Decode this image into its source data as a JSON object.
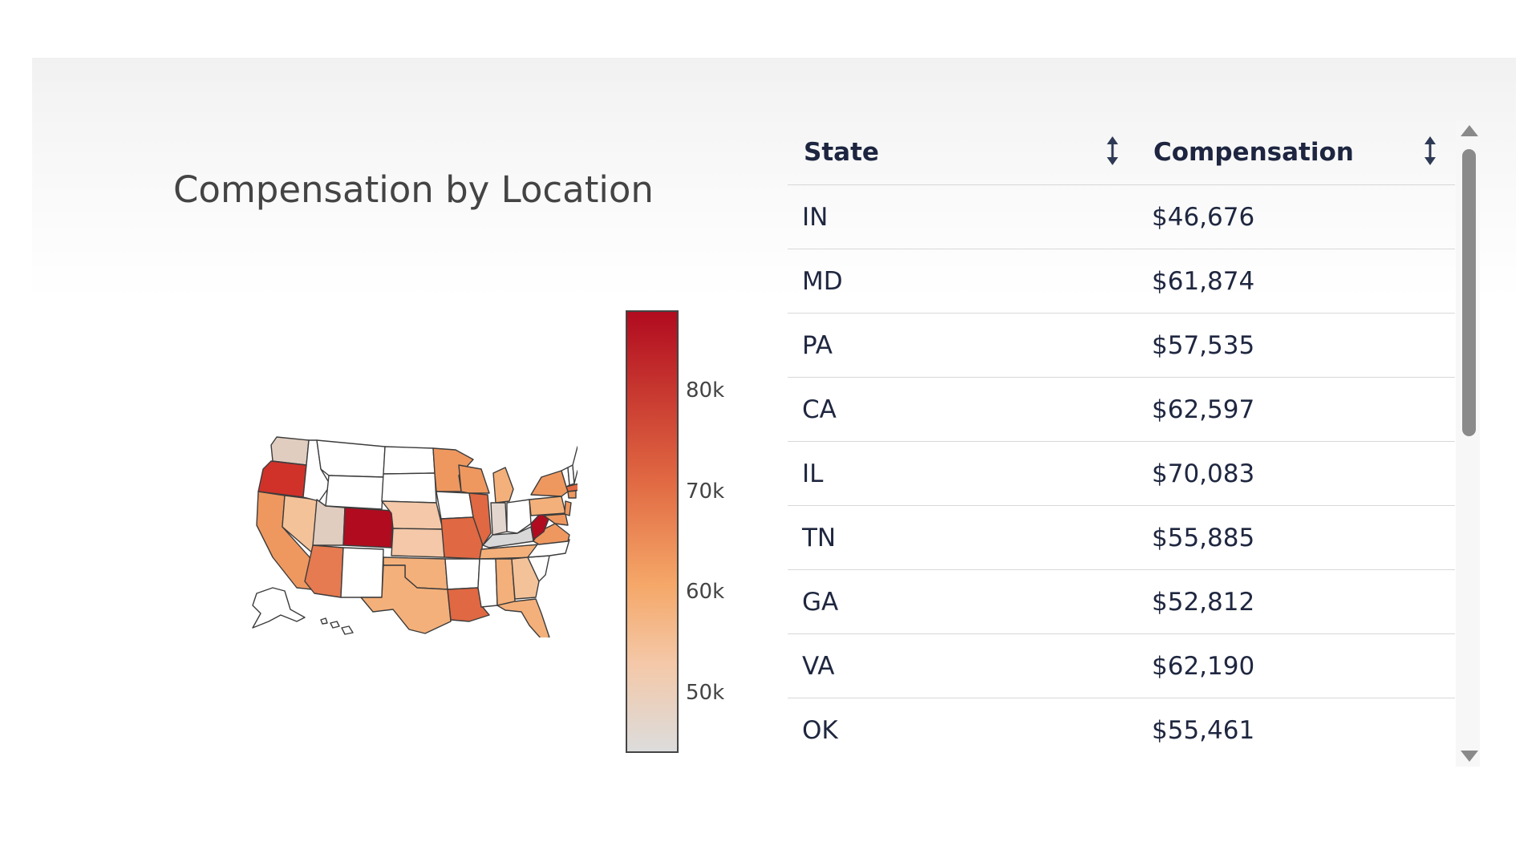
{
  "title": "Compensation by Location",
  "colorbar": {
    "ticks": [
      "80k",
      "70k",
      "60k",
      "50k"
    ],
    "tick_values": [
      80000,
      70000,
      60000,
      50000
    ],
    "range": [
      44000,
      88000
    ],
    "colors": [
      "#b10b1f",
      "#f5a768",
      "#dcdcdc"
    ]
  },
  "table": {
    "headers": [
      "State",
      "Compensation"
    ],
    "rows": [
      {
        "state": "IN",
        "comp": "$46,676"
      },
      {
        "state": "MD",
        "comp": "$61,874"
      },
      {
        "state": "PA",
        "comp": "$57,535"
      },
      {
        "state": "CA",
        "comp": "$62,597"
      },
      {
        "state": "IL",
        "comp": "$70,083"
      },
      {
        "state": "TN",
        "comp": "$55,885"
      },
      {
        "state": "GA",
        "comp": "$52,812"
      },
      {
        "state": "VA",
        "comp": "$62,190"
      },
      {
        "state": "OK",
        "comp": "$55,461"
      }
    ]
  },
  "icons": {
    "sort": "sort-arrows-icon",
    "scroll_up": "triangle-up-icon",
    "scroll_down": "triangle-down-icon"
  }
}
